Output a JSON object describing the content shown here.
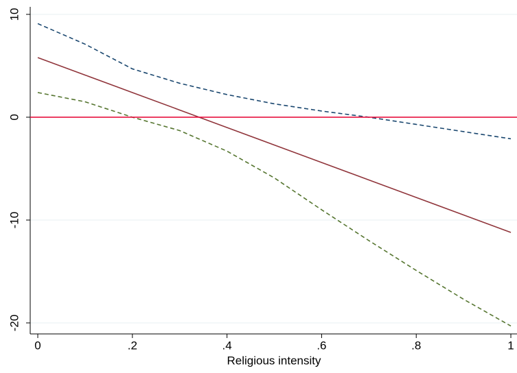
{
  "chart_data": {
    "type": "line",
    "x_label": "Religious intensity",
    "x": [
      0,
      0.1,
      0.2,
      0.3,
      0.4,
      0.5,
      0.6,
      0.7,
      0.8,
      0.9,
      1
    ],
    "series": [
      {
        "color": "#1a476f",
        "dashed": true,
        "values": [
          9.1,
          7.1,
          4.7,
          3.3,
          2.2,
          1.3,
          0.6,
          0.0,
          -0.7,
          -1.4,
          -2.1
        ]
      },
      {
        "color": "#90353b",
        "dashed": false,
        "values": [
          5.8,
          4.1,
          2.4,
          0.7,
          -1.0,
          -2.7,
          -4.4,
          -6.1,
          -7.8,
          -9.5,
          -11.2
        ]
      },
      {
        "color": "#55752f",
        "dashed": true,
        "values": [
          2.4,
          1.5,
          0.0,
          -1.3,
          -3.3,
          -5.9,
          -9.0,
          -12.0,
          -14.9,
          -17.7,
          -20.3
        ]
      }
    ],
    "yline": 0,
    "yline_color": "#e8103f",
    "xlim": [
      -0.016,
      1.013
    ],
    "ylim": [
      -21.07,
      10.73
    ],
    "xticks": [
      0,
      {
        "value": 0.2,
        "label": ".2"
      },
      {
        "value": 0.4,
        "label": ".4"
      },
      {
        "value": 0.6,
        "label": ".6"
      },
      {
        "value": 0.8,
        "label": ".8"
      },
      1
    ],
    "yticks": [
      -20,
      -10,
      0,
      10
    ],
    "grid": true
  }
}
